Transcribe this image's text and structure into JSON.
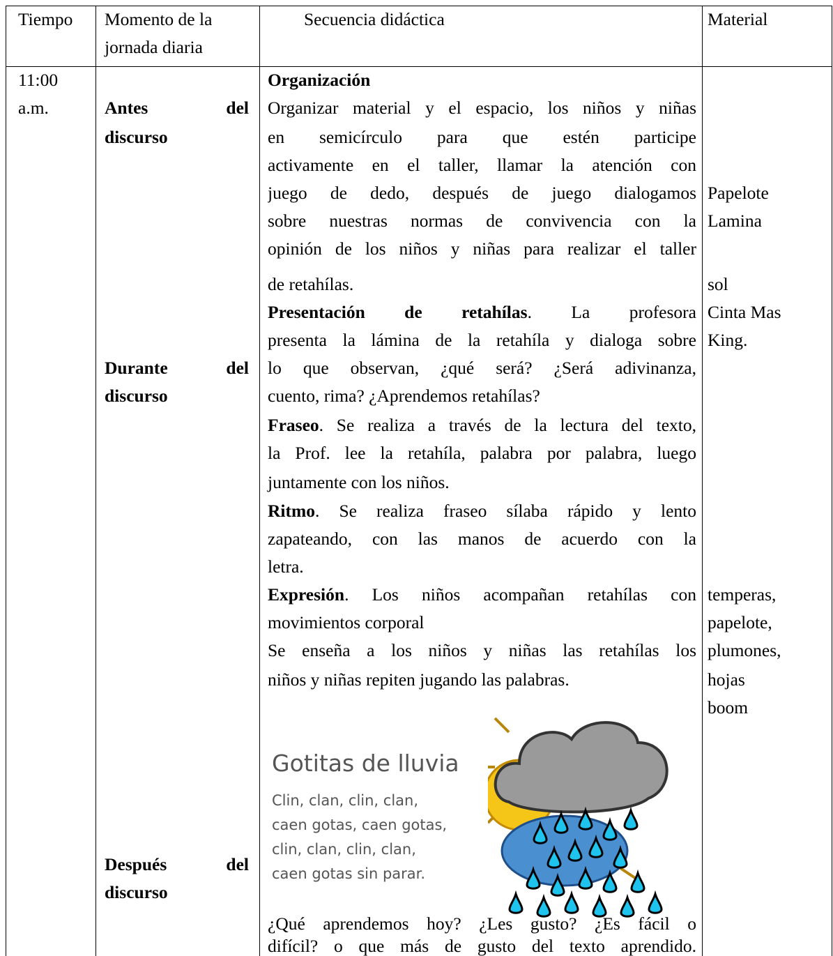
{
  "header": {
    "tiempo": "Tiempo",
    "momento": [
      "Momento de la",
      "jornada diaria"
    ],
    "secuencia": "Secuencia didáctica",
    "material": "Material"
  },
  "tiempo": [
    "11:00",
    "a.m."
  ],
  "momentos": [
    "Antes del",
    "discurso",
    "Durante del",
    "discurso",
    "Después del",
    "discurso"
  ],
  "secuencia": [
    {
      "b": "Organización"
    },
    {
      "t": "Organizar material y el espacio, los niños y niñas"
    },
    {
      "t": "en semicírculo para que estén participe"
    },
    {
      "t": "activamente en el taller, llamar la atención con"
    },
    {
      "t": "juego de dedo, después de juego dialogamos"
    },
    {
      "t": "sobre nuestras normas de convivencia con la"
    },
    {
      "t": "opinión de los niños y niñas para realizar el taller"
    },
    {
      "t": "de retahílas."
    },
    {
      "b": "Presentación de retahílas",
      "t": ". La profesora"
    },
    {
      "t": "presenta la lámina de la retahíla y dialoga sobre"
    },
    {
      "t": "lo que observan, ¿qué será? ¿Será adivinanza,"
    },
    {
      "t": "cuento, rima? ¿Aprendemos retahílas?"
    },
    {
      "b": "Fraseo",
      "t": ". Se realiza a través de la lectura del texto,"
    },
    {
      "t": "la Prof. lee la retahíla, palabra por palabra, luego"
    },
    {
      "t": "juntamente con los niños."
    },
    {
      "b": "Ritmo",
      "t": ". Se realiza fraseo sílaba rápido y lento"
    },
    {
      "t": "zapateando, con las manos de acuerdo con la"
    },
    {
      "t": "letra."
    },
    {
      "b": "Expresión",
      "t": ". Los niños acompañan retahílas con"
    },
    {
      "t": "movimientos corporal"
    },
    {
      "t": "Se enseña a los niños y niñas las retahílas los"
    },
    {
      "t": "niños y niñas repiten jugando las palabras."
    },
    {
      "t": "¿Qué aprendemos hoy? ¿Les gusto? ¿Es fácil o"
    },
    {
      "t": "difícil? o que más de gusto del texto aprendido."
    }
  ],
  "poem": {
    "title": "Gotitas de lluvia",
    "lines": [
      "Clin, clan, clin, clan,",
      "caen gotas, caen gotas,",
      "clin, clan, clin, clan,",
      "caen gotas sin parar."
    ]
  },
  "material": [
    "Papelote",
    "Lamina",
    "sol",
    "Cinta Mas",
    "King.",
    "temperas,",
    "papelote,",
    "plumones,",
    "hojas",
    "boom"
  ]
}
